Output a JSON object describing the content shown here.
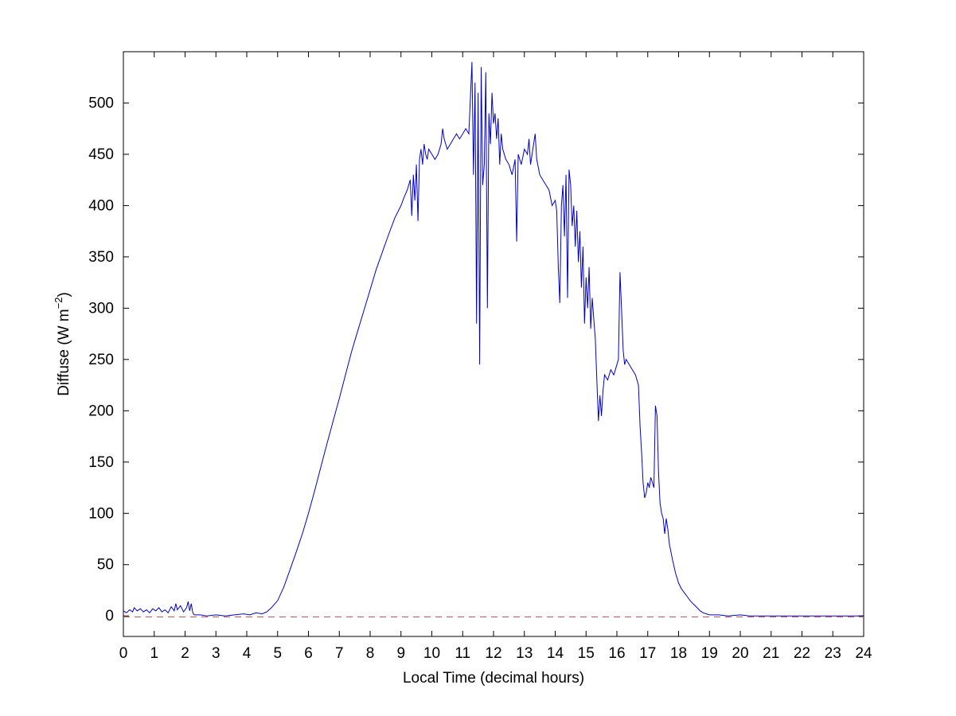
{
  "figure": {
    "background": "#ffffff"
  },
  "chart_data": {
    "type": "line",
    "title": "",
    "xlabel": "Local Time (decimal hours)",
    "ylabel": "Diffuse (W m^-2)",
    "ylabel_parts": [
      "Diffuse (W m",
      "−2",
      ")"
    ],
    "xlim": [
      0,
      24
    ],
    "ylim": [
      -20,
      550
    ],
    "xticks": [
      0,
      1,
      2,
      3,
      4,
      5,
      6,
      7,
      8,
      9,
      10,
      11,
      12,
      13,
      14,
      15,
      16,
      17,
      18,
      19,
      20,
      21,
      22,
      23,
      24
    ],
    "yticks": [
      0,
      50,
      100,
      150,
      200,
      250,
      300,
      350,
      400,
      450,
      500
    ],
    "grid": false,
    "legend": "none",
    "axis_color": "#000000",
    "series": [
      {
        "name": "diffuse",
        "color": "#0000cc",
        "style": "solid",
        "points": [
          [
            0,
            5
          ],
          [
            0.1,
            3
          ],
          [
            0.2,
            6
          ],
          [
            0.3,
            4
          ],
          [
            0.35,
            8
          ],
          [
            0.45,
            5
          ],
          [
            0.55,
            7
          ],
          [
            0.65,
            4
          ],
          [
            0.75,
            6
          ],
          [
            0.85,
            3
          ],
          [
            0.95,
            7
          ],
          [
            1.05,
            5
          ],
          [
            1.15,
            8
          ],
          [
            1.25,
            4
          ],
          [
            1.35,
            6
          ],
          [
            1.45,
            3
          ],
          [
            1.55,
            9
          ],
          [
            1.65,
            5
          ],
          [
            1.7,
            12
          ],
          [
            1.75,
            6
          ],
          [
            1.85,
            10
          ],
          [
            1.95,
            4
          ],
          [
            2.05,
            8
          ],
          [
            2.1,
            14
          ],
          [
            2.15,
            5
          ],
          [
            2.2,
            12
          ],
          [
            2.25,
            3
          ],
          [
            2.3,
            1
          ],
          [
            2.5,
            1
          ],
          [
            2.7,
            0
          ],
          [
            3,
            1
          ],
          [
            3.3,
            0
          ],
          [
            3.6,
            1
          ],
          [
            3.9,
            2
          ],
          [
            4.1,
            1
          ],
          [
            4.3,
            3
          ],
          [
            4.5,
            2
          ],
          [
            4.65,
            4
          ],
          [
            4.8,
            8
          ],
          [
            5,
            15
          ],
          [
            5.2,
            28
          ],
          [
            5.4,
            45
          ],
          [
            5.6,
            62
          ],
          [
            5.8,
            80
          ],
          [
            6,
            100
          ],
          [
            6.2,
            122
          ],
          [
            6.4,
            145
          ],
          [
            6.6,
            168
          ],
          [
            6.8,
            190
          ],
          [
            7,
            212
          ],
          [
            7.2,
            235
          ],
          [
            7.4,
            258
          ],
          [
            7.6,
            278
          ],
          [
            7.8,
            298
          ],
          [
            8,
            318
          ],
          [
            8.2,
            338
          ],
          [
            8.4,
            355
          ],
          [
            8.6,
            372
          ],
          [
            8.8,
            388
          ],
          [
            9,
            400
          ],
          [
            9.1,
            408
          ],
          [
            9.2,
            415
          ],
          [
            9.3,
            425
          ],
          [
            9.35,
            390
          ],
          [
            9.4,
            430
          ],
          [
            9.45,
            405
          ],
          [
            9.5,
            440
          ],
          [
            9.55,
            385
          ],
          [
            9.6,
            445
          ],
          [
            9.65,
            455
          ],
          [
            9.7,
            440
          ],
          [
            9.75,
            460
          ],
          [
            9.8,
            450
          ],
          [
            9.85,
            445
          ],
          [
            9.9,
            455
          ],
          [
            10,
            450
          ],
          [
            10.1,
            445
          ],
          [
            10.2,
            450
          ],
          [
            10.3,
            460
          ],
          [
            10.35,
            475
          ],
          [
            10.4,
            465
          ],
          [
            10.5,
            455
          ],
          [
            10.6,
            460
          ],
          [
            10.7,
            465
          ],
          [
            10.8,
            470
          ],
          [
            10.9,
            465
          ],
          [
            11,
            470
          ],
          [
            11.1,
            475
          ],
          [
            11.2,
            470
          ],
          [
            11.3,
            540
          ],
          [
            11.35,
            430
          ],
          [
            11.4,
            520
          ],
          [
            11.45,
            285
          ],
          [
            11.5,
            510
          ],
          [
            11.55,
            245
          ],
          [
            11.6,
            535
          ],
          [
            11.65,
            420
          ],
          [
            11.7,
            440
          ],
          [
            11.75,
            530
          ],
          [
            11.8,
            300
          ],
          [
            11.85,
            490
          ],
          [
            11.9,
            460
          ],
          [
            11.95,
            510
          ],
          [
            12,
            480
          ],
          [
            12.05,
            490
          ],
          [
            12.1,
            465
          ],
          [
            12.15,
            485
          ],
          [
            12.2,
            440
          ],
          [
            12.25,
            470
          ],
          [
            12.3,
            455
          ],
          [
            12.4,
            445
          ],
          [
            12.5,
            440
          ],
          [
            12.6,
            430
          ],
          [
            12.7,
            445
          ],
          [
            12.75,
            365
          ],
          [
            12.8,
            450
          ],
          [
            12.9,
            440
          ],
          [
            13,
            455
          ],
          [
            13.1,
            450
          ],
          [
            13.15,
            465
          ],
          [
            13.2,
            440
          ],
          [
            13.3,
            460
          ],
          [
            13.35,
            470
          ],
          [
            13.4,
            445
          ],
          [
            13.5,
            430
          ],
          [
            13.6,
            425
          ],
          [
            13.7,
            420
          ],
          [
            13.8,
            415
          ],
          [
            13.9,
            400
          ],
          [
            14,
            405
          ],
          [
            14.05,
            395
          ],
          [
            14.1,
            340
          ],
          [
            14.15,
            305
          ],
          [
            14.2,
            400
          ],
          [
            14.25,
            420
          ],
          [
            14.3,
            370
          ],
          [
            14.35,
            430
          ],
          [
            14.4,
            310
          ],
          [
            14.45,
            435
          ],
          [
            14.5,
            420
          ],
          [
            14.55,
            380
          ],
          [
            14.6,
            400
          ],
          [
            14.65,
            360
          ],
          [
            14.7,
            395
          ],
          [
            14.75,
            345
          ],
          [
            14.8,
            375
          ],
          [
            14.85,
            320
          ],
          [
            14.9,
            360
          ],
          [
            14.95,
            285
          ],
          [
            15,
            330
          ],
          [
            15.05,
            300
          ],
          [
            15.1,
            340
          ],
          [
            15.15,
            280
          ],
          [
            15.2,
            310
          ],
          [
            15.25,
            290
          ],
          [
            15.3,
            270
          ],
          [
            15.35,
            230
          ],
          [
            15.4,
            190
          ],
          [
            15.45,
            215
          ],
          [
            15.5,
            195
          ],
          [
            15.55,
            220
          ],
          [
            15.6,
            235
          ],
          [
            15.7,
            230
          ],
          [
            15.8,
            240
          ],
          [
            15.9,
            235
          ],
          [
            16,
            245
          ],
          [
            16.05,
            250
          ],
          [
            16.1,
            335
          ],
          [
            16.15,
            300
          ],
          [
            16.2,
            260
          ],
          [
            16.25,
            245
          ],
          [
            16.3,
            250
          ],
          [
            16.4,
            245
          ],
          [
            16.5,
            240
          ],
          [
            16.6,
            235
          ],
          [
            16.7,
            225
          ],
          [
            16.75,
            185
          ],
          [
            16.8,
            160
          ],
          [
            16.85,
            130
          ],
          [
            16.9,
            115
          ],
          [
            16.95,
            120
          ],
          [
            17,
            130
          ],
          [
            17.05,
            125
          ],
          [
            17.1,
            135
          ],
          [
            17.15,
            130
          ],
          [
            17.2,
            125
          ],
          [
            17.25,
            205
          ],
          [
            17.3,
            195
          ],
          [
            17.35,
            140
          ],
          [
            17.4,
            110
          ],
          [
            17.45,
            100
          ],
          [
            17.5,
            95
          ],
          [
            17.55,
            80
          ],
          [
            17.6,
            95
          ],
          [
            17.65,
            85
          ],
          [
            17.7,
            70
          ],
          [
            17.8,
            55
          ],
          [
            17.9,
            42
          ],
          [
            18,
            32
          ],
          [
            18.1,
            26
          ],
          [
            18.2,
            22
          ],
          [
            18.3,
            18
          ],
          [
            18.4,
            14
          ],
          [
            18.5,
            11
          ],
          [
            18.6,
            8
          ],
          [
            18.7,
            5
          ],
          [
            18.8,
            3
          ],
          [
            18.9,
            2
          ],
          [
            19,
            1
          ],
          [
            19.3,
            1
          ],
          [
            19.6,
            0
          ],
          [
            20,
            1
          ],
          [
            20.3,
            0
          ],
          [
            21,
            0
          ],
          [
            22,
            0
          ],
          [
            23,
            0
          ],
          [
            23.5,
            0
          ],
          [
            24,
            0
          ]
        ]
      },
      {
        "name": "zero-reference",
        "color": "#d05050",
        "style": "dashed",
        "points": [
          [
            0,
            -1
          ],
          [
            24,
            -1
          ]
        ]
      }
    ]
  }
}
